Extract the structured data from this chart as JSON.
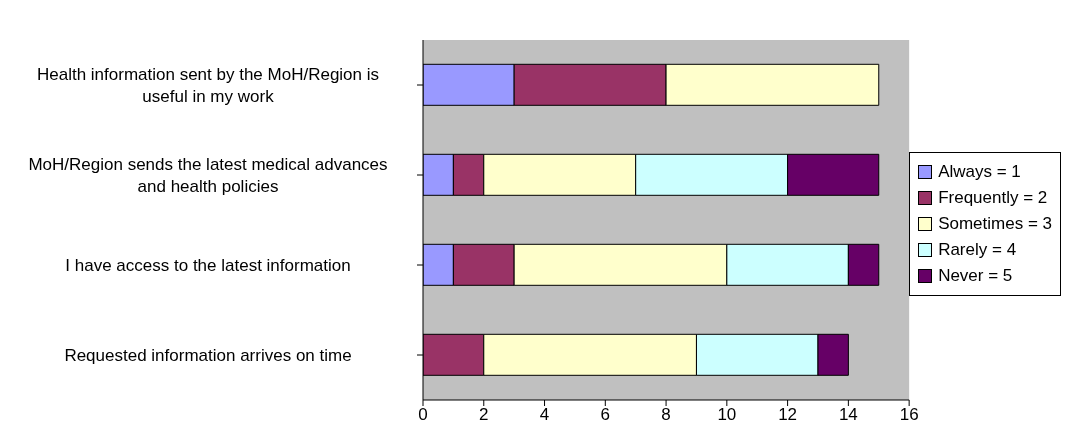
{
  "chart_data": {
    "type": "bar",
    "orientation": "horizontal",
    "stacked": true,
    "legend": "right",
    "categories": [
      "Health information sent by the MoH/Region is useful in my work",
      "MoH/Region sends the latest medical advances and health policies",
      "I have access to the latest information",
      "Requested information arrives on time"
    ],
    "series": [
      {
        "name": "Always = 1",
        "color": "#9999ff",
        "values": [
          3,
          1,
          1,
          0
        ]
      },
      {
        "name": "Frequently = 2",
        "color": "#993366",
        "values": [
          5,
          1,
          2,
          2
        ]
      },
      {
        "name": "Sometimes = 3",
        "color": "#ffffcc",
        "values": [
          7,
          5,
          7,
          7
        ]
      },
      {
        "name": "Rarely = 4",
        "color": "#ccffff",
        "values": [
          0,
          5,
          4,
          4
        ]
      },
      {
        "name": "Never = 5",
        "color": "#660066",
        "values": [
          0,
          3,
          1,
          1
        ]
      }
    ],
    "xlim": [
      0,
      16
    ],
    "xticks": [
      0,
      2,
      4,
      6,
      8,
      10,
      12,
      14,
      16
    ]
  }
}
